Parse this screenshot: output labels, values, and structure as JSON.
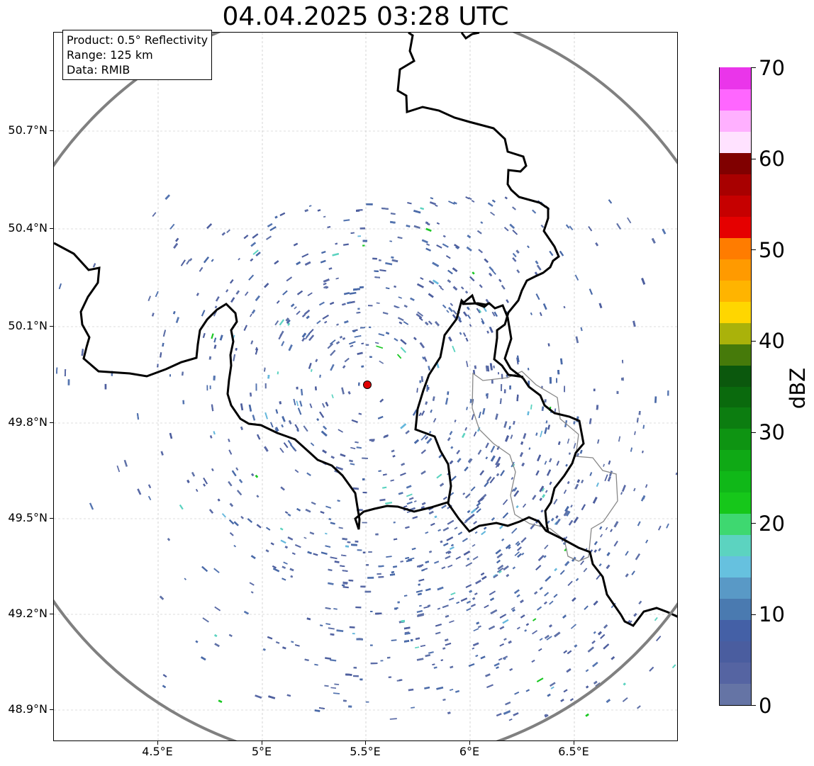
{
  "title": "04.04.2025 03:28 UTC",
  "info_box": {
    "product": "Product: 0.5° Reflectivity",
    "range": "Range: 125 km",
    "source": "Data: RMIB"
  },
  "map": {
    "lon_range": [
      4.0,
      7.0
    ],
    "lat_range": [
      48.8,
      51.0
    ],
    "x_ticks": [
      "4.5°E",
      "5°E",
      "5.5°E",
      "6°E",
      "6.5°E"
    ],
    "y_ticks": [
      "48.9°N",
      "49.2°N",
      "49.5°N",
      "49.8°N",
      "50.1°N",
      "50.4°N",
      "50.7°N"
    ],
    "grid": true,
    "radar_site": {
      "lon": 5.505,
      "lat": 49.914,
      "marker_color": "#e00000"
    },
    "range_ring_color": "#808080",
    "border_color": "#000000",
    "subregion_border_color": "#888888"
  },
  "colorbar": {
    "label": "dBZ",
    "min": 0,
    "max": 70,
    "tick_labels": [
      "0",
      "10",
      "20",
      "30",
      "40",
      "50",
      "60",
      "70"
    ],
    "colors": [
      "#6574a5",
      "#5564a2",
      "#4a5d9f",
      "#4460a6",
      "#4a7ab0",
      "#5999c6",
      "#66c1df",
      "#5cd3c0",
      "#3ed870",
      "#16c71a",
      "#10b818",
      "#0fa915",
      "#0e9412",
      "#0c7d10",
      "#0a6a0d",
      "#0b580d",
      "#467a0a",
      "#aab20a",
      "#ffd600",
      "#ffb400",
      "#ff9a00",
      "#ff7c00",
      "#e50000",
      "#c60000",
      "#a80000",
      "#800000",
      "#ffe2ff",
      "#ffb0ff",
      "#ff66ff",
      "#ea35ea"
    ]
  }
}
